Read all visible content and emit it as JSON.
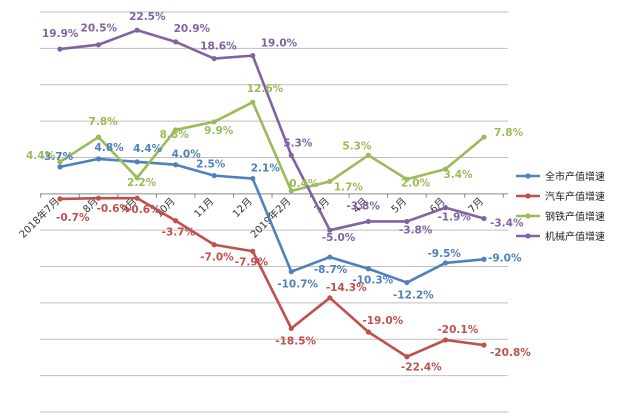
{
  "chart_data": {
    "type": "line",
    "title": "",
    "xlabel": "",
    "ylabel": "",
    "categories": [
      "2018年7月",
      "8月",
      "9月",
      "10月",
      "11月",
      "12月",
      "2019年2月",
      "3月",
      "4月",
      "5月",
      "6月",
      "7月"
    ],
    "ylim": [
      -30,
      25
    ],
    "grid": true,
    "legend_position": "right",
    "series": [
      {
        "name": "全市产值增速",
        "color": "#4f81bd",
        "values": [
          3.7,
          4.8,
          4.4,
          4.0,
          2.5,
          2.1,
          -10.7,
          -8.7,
          -10.3,
          -12.2,
          -9.5,
          -9.0
        ],
        "labels": [
          "3.7%",
          "4.8%",
          "4.4%",
          "4.0%",
          "2.5%",
          "2.1%",
          "-10.7%",
          "-8.7%",
          "-10.3%",
          "-12.2%",
          "-9.5%",
          "-9.0%"
        ]
      },
      {
        "name": "汽车产值增速",
        "color": "#c0504d",
        "values": [
          -0.7,
          -0.6,
          -0.6,
          -3.7,
          -7.0,
          -7.9,
          -18.5,
          -14.3,
          -19.0,
          -22.4,
          -20.1,
          -20.8
        ],
        "labels": [
          "-0.7%",
          "-0.6%",
          "-0.6%",
          "-3.7%",
          "-7.0%",
          "-7.9%",
          "-18.5%",
          "-14.3%",
          "-19.0%",
          "-22.4%",
          "-20.1%",
          "-20.8%"
        ]
      },
      {
        "name": "钢铁产值增速",
        "color": "#9bbb59",
        "values": [
          4.4,
          7.8,
          2.2,
          8.8,
          9.9,
          12.6,
          0.4,
          1.7,
          5.3,
          2.0,
          3.4,
          7.8
        ],
        "labels": [
          "4.4%",
          "7.8%",
          "2.2%",
          "8.8%",
          "9.9%",
          "12.6%",
          "0.4%",
          "1.7%",
          "5.3%",
          "2.0%",
          "3.4%",
          "7.8%"
        ]
      },
      {
        "name": "机械产值增速",
        "color": "#8064a2",
        "values": [
          19.9,
          20.5,
          22.5,
          20.9,
          18.6,
          19.0,
          5.3,
          -5.0,
          -3.8,
          -3.8,
          -1.9,
          -3.4
        ],
        "labels": [
          "19.9%",
          "20.5%",
          "22.5%",
          "20.9%",
          "18.6%",
          "19.0%",
          "5.3%",
          "-5.0%",
          "-3.8%",
          "-3.8%",
          "-1.9%",
          "-3.4%"
        ]
      }
    ]
  }
}
